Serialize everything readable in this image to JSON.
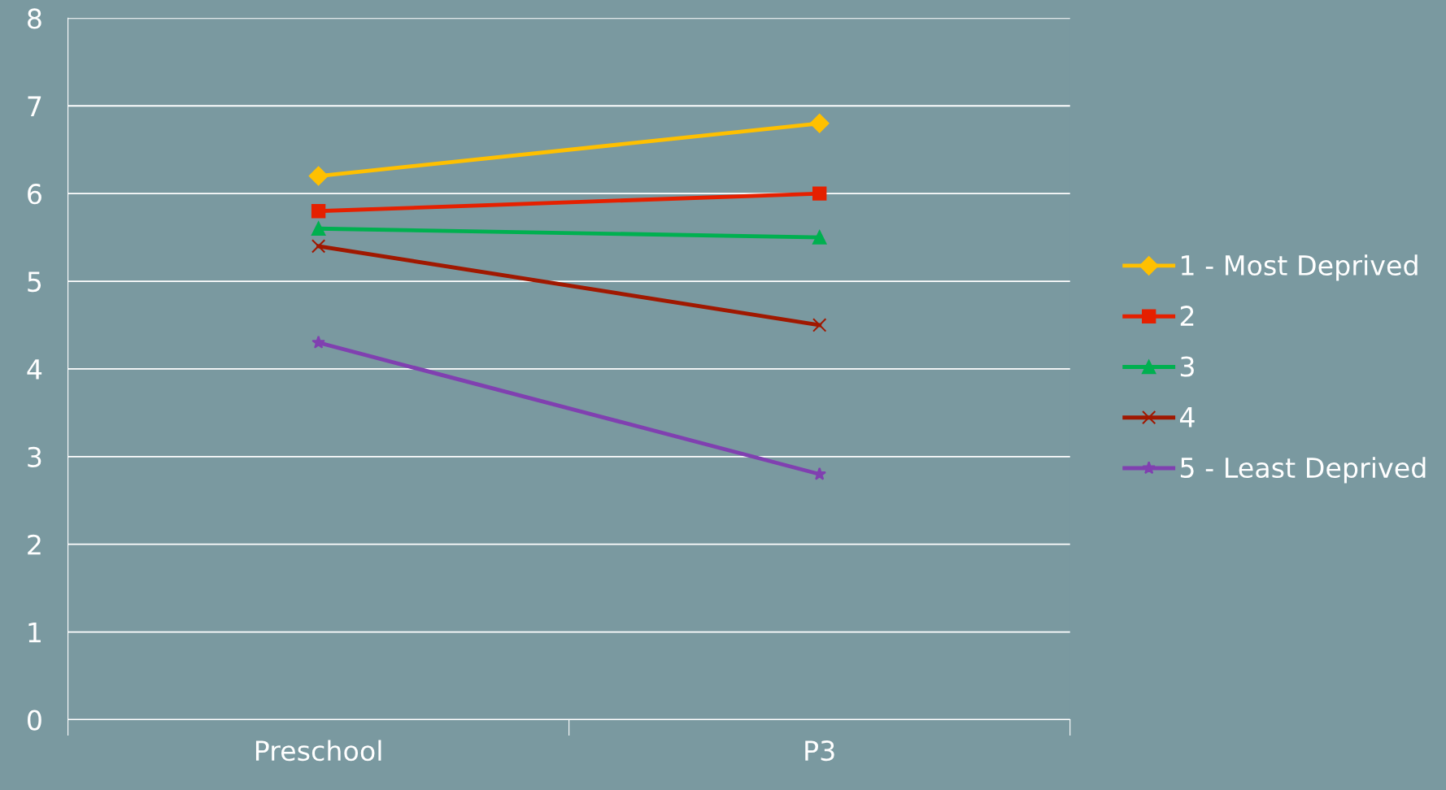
{
  "chart_data": {
    "type": "line",
    "categories": [
      "Preschool",
      "P3"
    ],
    "series": [
      {
        "name": "1 - Most Deprived",
        "color": "#ffc000",
        "marker": "diamond",
        "values": [
          6.2,
          6.8
        ]
      },
      {
        "name": "2",
        "color": "#e52000",
        "marker": "square",
        "values": [
          5.8,
          6.0
        ]
      },
      {
        "name": "3",
        "color": "#00b050",
        "marker": "triangle",
        "values": [
          5.6,
          5.5
        ]
      },
      {
        "name": "4",
        "color": "#a01800",
        "marker": "cross",
        "values": [
          5.4,
          4.5
        ]
      },
      {
        "name": "5 - Least Deprived",
        "color": "#8040b0",
        "marker": "star",
        "values": [
          4.3,
          2.8
        ]
      }
    ],
    "ylim": [
      0,
      8
    ],
    "yticks": [
      0,
      1,
      2,
      3,
      4,
      5,
      6,
      7,
      8
    ],
    "grid": "y",
    "legend": "right",
    "line_style": "solid"
  }
}
